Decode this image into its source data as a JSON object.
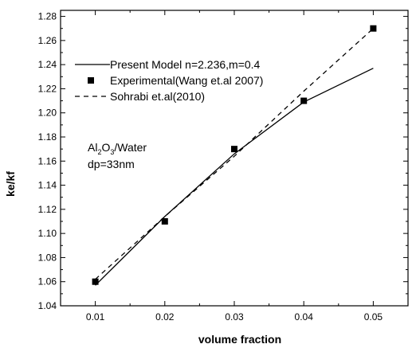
{
  "chart_data": {
    "type": "line",
    "xlabel": "volume fraction",
    "ylabel": "ke/kf",
    "xlim": [
      0.005,
      0.055
    ],
    "ylim": [
      1.04,
      1.285
    ],
    "x_ticks": [
      0.01,
      0.02,
      0.03,
      0.04,
      0.05
    ],
    "x_tick_labels": [
      "0.01",
      "0.02",
      "0.03",
      "0.04",
      "0.05"
    ],
    "y_ticks": [
      1.04,
      1.06,
      1.08,
      1.1,
      1.12,
      1.14,
      1.16,
      1.18,
      1.2,
      1.22,
      1.24,
      1.26,
      1.28
    ],
    "y_tick_labels": [
      "1.04",
      "1.06",
      "1.08",
      "1.10",
      "1.12",
      "1.14",
      "1.16",
      "1.18",
      "1.20",
      "1.22",
      "1.24",
      "1.26",
      "1.28"
    ],
    "grid": false,
    "legend_position": "top-left",
    "series": [
      {
        "name": "Present Model n=2.236,m=0.4",
        "style": "solid-line",
        "color": "#000000",
        "x": [
          0.01,
          0.02,
          0.03,
          0.04,
          0.05
        ],
        "y": [
          1.057,
          1.114,
          1.166,
          1.209,
          1.237
        ]
      },
      {
        "name": "Experimental(Wang et.al 2007)",
        "style": "square-marker",
        "color": "#000000",
        "x": [
          0.01,
          0.02,
          0.03,
          0.04,
          0.05
        ],
        "y": [
          1.06,
          1.11,
          1.17,
          1.21,
          1.27
        ]
      },
      {
        "name": "Sohrabi et.al(2010)",
        "style": "dashed-line",
        "color": "#000000",
        "x": [
          0.01,
          0.02,
          0.03,
          0.04,
          0.05
        ],
        "y": [
          1.062,
          1.114,
          1.164,
          1.218,
          1.27
        ]
      }
    ],
    "annotation": {
      "line1_prefix": "Al",
      "line1_sub1": "2",
      "line1_mid": "O",
      "line1_sub2": "3",
      "line1_suffix": "/Water",
      "line2": "dp=33nm"
    }
  }
}
